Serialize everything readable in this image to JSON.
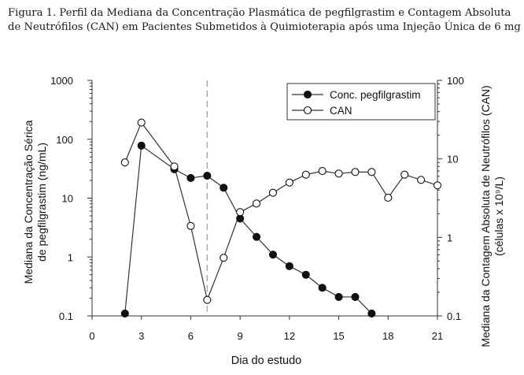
{
  "caption": "Figura 1. Perfil da Mediana da Concentração Plasmática de pegfilgrastim e Contagem Absoluta de Neutrófilos (CAN) em Pacientes Submetidos à Quimioterapia após uma Injeção Única de 6 mg",
  "chart_data": {
    "type": "line",
    "title": "",
    "xlabel": "Dia do estudo",
    "ylabel_left": "Mediana da Concentração Sérica de pegfilgrastim (ng/mL)",
    "ylabel_left_lines": [
      "Mediana da Concentração Sérica",
      "de pegfilgrastim (ng/mL)"
    ],
    "ylabel_right": "Mediana da Contagem Absoluta de Neutrófilos (CAN) (células x 10⁹/L)",
    "ylabel_right_lines": [
      "Mediana da Contagem Absoluta de Neutrófilos (CAN)",
      "(células x 10⁹/L)"
    ],
    "xlim": [
      0,
      21
    ],
    "x_ticks": [
      "0",
      "3",
      "6",
      "9",
      "12",
      "15",
      "18",
      "21"
    ],
    "y_left_scale": "log",
    "y_left_lim": [
      0.1,
      1000
    ],
    "y_left_ticks": [
      "0.1",
      "1",
      "10",
      "100",
      "1000"
    ],
    "y_right_scale": "log",
    "y_right_lim": [
      0.1,
      100
    ],
    "y_right_ticks": [
      "0.1",
      "1",
      "10",
      "100"
    ],
    "reference_line_x": 7,
    "grid": false,
    "legend_position": "top-right",
    "series": [
      {
        "name": "Conc. pegfilgrastim",
        "axis": "left",
        "marker": "filled-circle",
        "x": [
          2,
          3,
          5,
          6,
          7,
          8,
          9,
          10,
          11,
          12,
          13,
          14,
          15,
          16,
          17
        ],
        "y": [
          0.11,
          78,
          31,
          22,
          24,
          15,
          4.5,
          2.2,
          1.1,
          0.7,
          0.5,
          0.3,
          0.21,
          0.21,
          0.11
        ]
      },
      {
        "name": "CAN",
        "axis": "right",
        "marker": "open-circle",
        "x": [
          2,
          3,
          5,
          6,
          7,
          8,
          9,
          10,
          11,
          12,
          13,
          14,
          15,
          16,
          17,
          18,
          19,
          20,
          21
        ],
        "y": [
          9,
          29,
          8,
          1.4,
          0.16,
          0.55,
          2.1,
          2.7,
          3.7,
          5,
          6.3,
          7,
          6.5,
          6.8,
          6.8,
          3.2,
          6.3,
          5.4,
          4.6
        ]
      }
    ]
  }
}
